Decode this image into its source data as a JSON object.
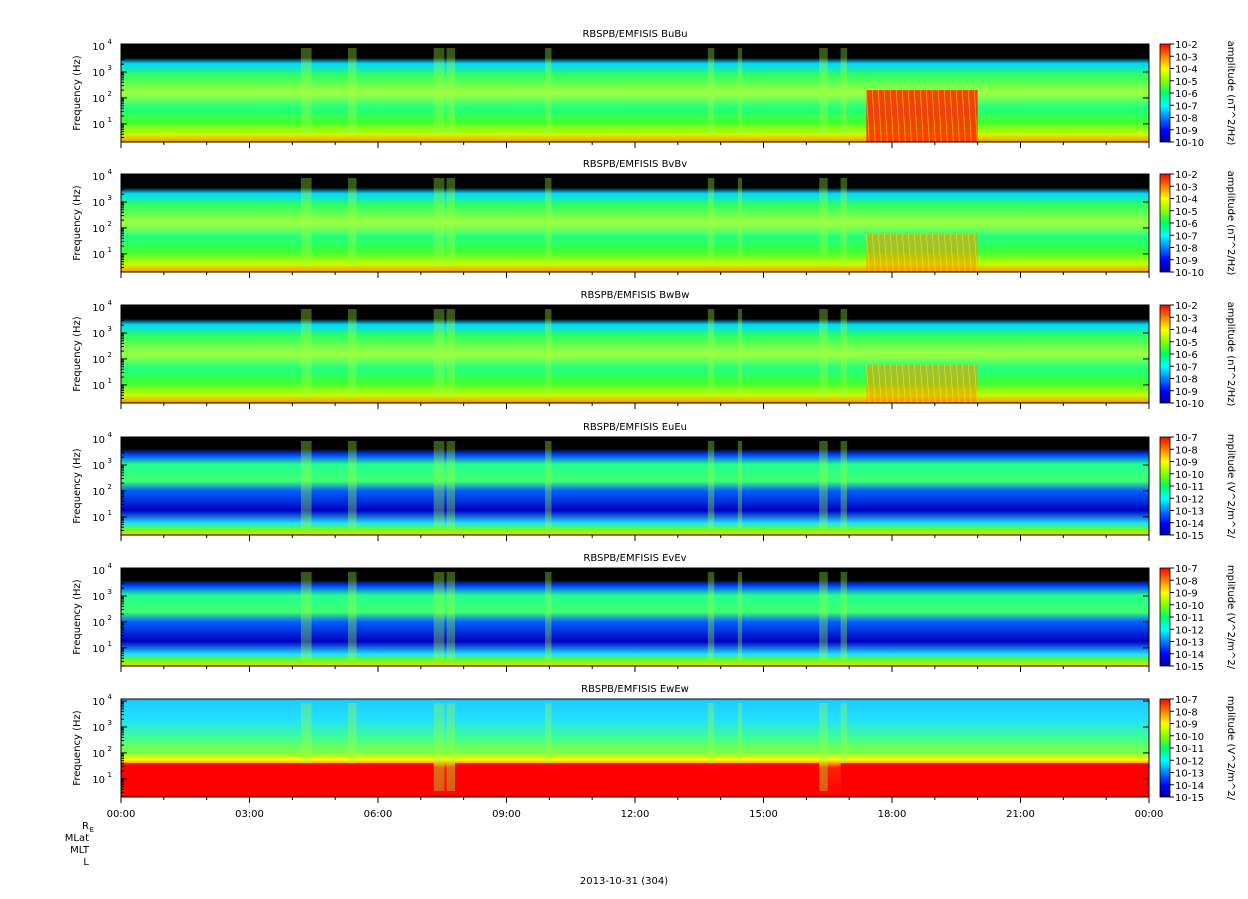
{
  "chart_data": [
    {
      "type": "heatmap",
      "title": "RBSPB/EMFISIS  BuBu",
      "ylabel": "Frequency (Hz)",
      "colorbar_label": "amplitude (nT^2/Hz)",
      "colorbar_ticks": [
        "10-2",
        "10-3",
        "10-4",
        "10-5",
        "10-6",
        "10-7",
        "10-8",
        "10-9",
        "10-10"
      ],
      "y_ticks": [
        "10",
        "10",
        "10",
        "10"
      ],
      "y_exponents": [
        "4",
        "3",
        "2",
        "1"
      ],
      "yscale": "log",
      "ylim_hz": [
        2,
        12000
      ],
      "bursts": [
        [
          17.4,
          20.0
        ]
      ]
    },
    {
      "type": "heatmap",
      "title": "RBSPB/EMFISIS  BvBv",
      "ylabel": "Frequency (Hz)",
      "colorbar_label": "amplitude (nT^2/Hz)",
      "colorbar_ticks": [
        "10-2",
        "10-3",
        "10-4",
        "10-5",
        "10-6",
        "10-7",
        "10-8",
        "10-9",
        "10-10"
      ],
      "y_ticks": [
        "10",
        "10",
        "10",
        "10"
      ],
      "y_exponents": [
        "4",
        "3",
        "2",
        "1"
      ],
      "yscale": "log",
      "ylim_hz": [
        2,
        12000
      ],
      "bursts": [
        [
          17.4,
          20.0
        ]
      ]
    },
    {
      "type": "heatmap",
      "title": "RBSPB/EMFISIS  BwBw",
      "ylabel": "Frequency (Hz)",
      "colorbar_label": "amplitude (nT^2/Hz)",
      "colorbar_ticks": [
        "10-2",
        "10-3",
        "10-4",
        "10-5",
        "10-6",
        "10-7",
        "10-8",
        "10-9",
        "10-10"
      ],
      "y_ticks": [
        "10",
        "10",
        "10",
        "10"
      ],
      "y_exponents": [
        "4",
        "3",
        "2",
        "1"
      ],
      "yscale": "log",
      "ylim_hz": [
        2,
        12000
      ],
      "bursts": [
        [
          17.4,
          20.0
        ]
      ]
    },
    {
      "type": "heatmap",
      "title": "RBSPB/EMFISIS  EuEu",
      "ylabel": "Frequency (Hz)",
      "colorbar_label": "mplitude (V^2/m^2/",
      "colorbar_ticks": [
        "10-7",
        "10-8",
        "10-9",
        "10-10",
        "10-11",
        "10-12",
        "10-13",
        "10-14",
        "10-15"
      ],
      "y_ticks": [
        "10",
        "10",
        "10",
        "10"
      ],
      "y_exponents": [
        "4",
        "3",
        "2",
        "1"
      ],
      "yscale": "log",
      "ylim_hz": [
        2,
        12000
      ],
      "bursts": []
    },
    {
      "type": "heatmap",
      "title": "RBSPB/EMFISIS  EvEv",
      "ylabel": "Frequency (Hz)",
      "colorbar_label": "mplitude (V^2/m^2/",
      "colorbar_ticks": [
        "10-7",
        "10-8",
        "10-9",
        "10-10",
        "10-11",
        "10-12",
        "10-13",
        "10-14",
        "10-15"
      ],
      "y_ticks": [
        "10",
        "10",
        "10",
        "10"
      ],
      "y_exponents": [
        "4",
        "3",
        "2",
        "1"
      ],
      "yscale": "log",
      "ylim_hz": [
        2,
        12000
      ],
      "bursts": []
    },
    {
      "type": "heatmap",
      "title": "RBSPB/EMFISIS  EwEw",
      "ylabel": "Frequency (Hz)",
      "colorbar_label": "mplitude (V^2/m^2/",
      "colorbar_ticks": [
        "10-7",
        "10-8",
        "10-9",
        "10-10",
        "10-11",
        "10-12",
        "10-13",
        "10-14",
        "10-15"
      ],
      "y_ticks": [
        "10",
        "10",
        "10",
        "10"
      ],
      "y_exponents": [
        "4",
        "3",
        "2",
        "1"
      ],
      "yscale": "log",
      "ylim_hz": [
        2,
        12000
      ],
      "bursts": []
    }
  ],
  "x_axis": {
    "range_hours": [
      0,
      24
    ],
    "tick_labels": [
      "00:00",
      "03:00",
      "06:00",
      "09:00",
      "12:00",
      "15:00",
      "18:00",
      "21:00",
      "00:00"
    ]
  },
  "ephemeris_labels": [
    "R",
    "MLat",
    "MLT",
    "L"
  ],
  "ephemeris_subscript": "E",
  "date_label": "2013-10-31 (304)",
  "colors": {
    "black_band": "#000000",
    "colormap": [
      "#0000b0",
      "#0000ff",
      "#0080ff",
      "#00ffff",
      "#00ff80",
      "#40ff00",
      "#ffff00",
      "#ff8000",
      "#ff0000"
    ]
  }
}
